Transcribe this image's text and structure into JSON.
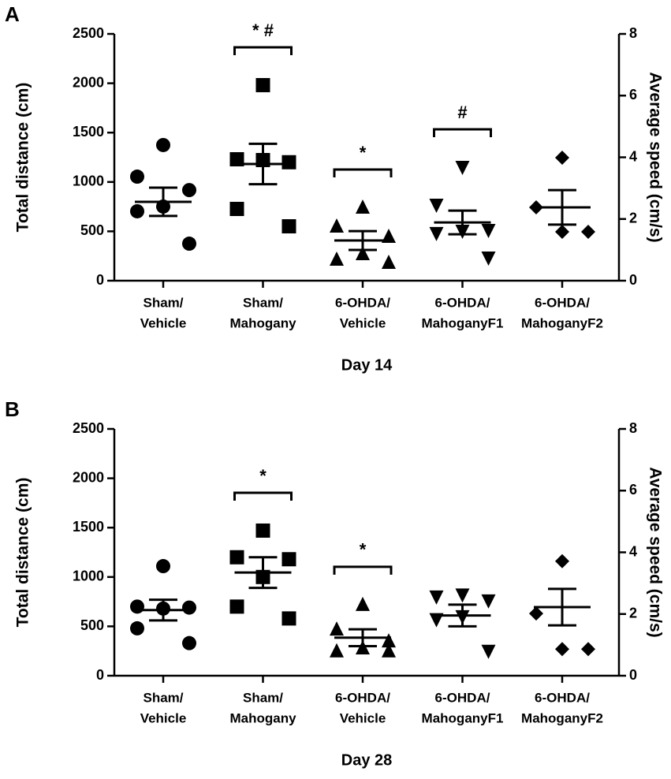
{
  "chart_data": [
    {
      "type": "dot",
      "panel": "A",
      "categories": [
        [
          "Sham/",
          "Vehicle"
        ],
        [
          "Sham/",
          "Mahogany"
        ],
        [
          "6-OHDA/",
          "Vehicle"
        ],
        [
          "6-OHDA/",
          "MahoganyF1"
        ],
        [
          "6-OHDA/",
          "MahoganyF2"
        ]
      ],
      "markers": [
        "circle",
        "square",
        "triangle",
        "triangle-down",
        "diamond"
      ],
      "points": [
        [
          1374,
          1054,
          918,
          751,
          703,
          375
        ],
        [
          1981,
          1230,
          1200,
          1222,
          727,
          551
        ],
        [
          743,
          551,
          447,
          272,
          216,
          184
        ],
        [
          1150,
          767,
          511,
          503,
          480,
          232
        ],
        [
          1246,
          743,
          495,
          495
        ]
      ],
      "means": [
        799,
        1182,
        407,
        590,
        743
      ],
      "sem": [
        143,
        205,
        95,
        120,
        175
      ],
      "significance": [
        null,
        "* #",
        "*",
        "#",
        null
      ],
      "color": "#000000",
      "ylabel": "Total distance (cm)",
      "y2label": "Average speed (cm/s)",
      "xlabel": "Day 14",
      "ylim": [
        0,
        2500
      ],
      "yticks": [
        0,
        500,
        1000,
        1500,
        2000,
        2500
      ],
      "y2lim": [
        0,
        8
      ],
      "y2ticks": [
        0,
        2,
        4,
        6,
        8
      ]
    },
    {
      "type": "dot",
      "panel": "B",
      "categories": [
        [
          "Sham/",
          "Vehicle"
        ],
        [
          "Sham/",
          "Mahogany"
        ],
        [
          "6-OHDA/",
          "Vehicle"
        ],
        [
          "6-OHDA/",
          "MahoganyF1"
        ],
        [
          "6-OHDA/",
          "MahoganyF2"
        ]
      ],
      "markers": [
        "circle",
        "square",
        "triangle",
        "triangle-down",
        "diamond"
      ],
      "points": [
        [
          1110,
          700,
          690,
          680,
          480,
          330
        ],
        [
          1470,
          1200,
          1180,
          1000,
          700,
          580
        ],
        [
          720,
          470,
          350,
          280,
          250,
          250
        ],
        [
          820,
          800,
          760,
          600,
          570,
          250
        ],
        [
          1160,
          630,
          270,
          270
        ]
      ],
      "means": [
        665,
        1045,
        385,
        610,
        695
      ],
      "sem": [
        105,
        155,
        85,
        110,
        185
      ],
      "significance": [
        null,
        "*",
        "*",
        null,
        null
      ],
      "color": "#000000",
      "ylabel": "Total distance (cm)",
      "y2label": "Average speed (cm/s)",
      "xlabel": "Day 28",
      "ylim": [
        0,
        2500
      ],
      "yticks": [
        0,
        500,
        1000,
        1500,
        2000,
        2500
      ],
      "y2lim": [
        0,
        8
      ],
      "y2ticks": [
        0,
        2,
        4,
        6,
        8
      ]
    }
  ]
}
